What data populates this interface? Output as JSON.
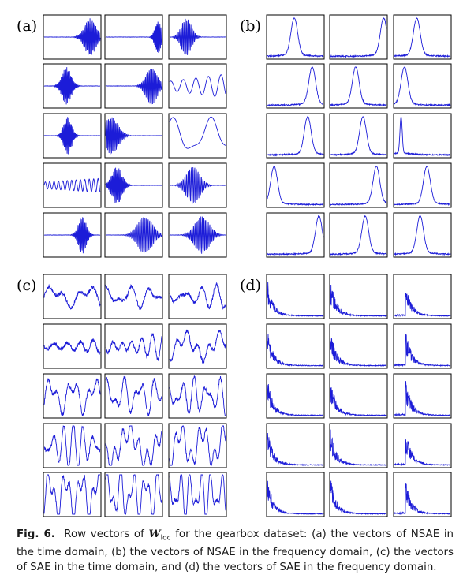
{
  "figure": {
    "panels": [
      {
        "id": "a",
        "label": "(a)",
        "domain": "time",
        "method": "NSAE"
      },
      {
        "id": "b",
        "label": "(b)",
        "domain": "frequency",
        "method": "NSAE"
      },
      {
        "id": "c",
        "label": "(c)",
        "domain": "time",
        "method": "SAE"
      },
      {
        "id": "d",
        "label": "(d)",
        "domain": "frequency",
        "method": "SAE"
      }
    ],
    "grid": {
      "rows": 5,
      "cols": 3
    },
    "line_color": "#1c1cd8",
    "frame_color": "#000000"
  },
  "caption": {
    "label": "Fig. 6.",
    "pre": "Row vectors of",
    "symbol": "W",
    "subscript": "loc",
    "text": "for the gearbox dataset: (a) the vectors of NSAE in the time domain, (b) the vectors of NSAE in the frequency domain, (c) the vectors of SAE in the time domain, and (d) the vectors of SAE in the frequency domain."
  }
}
